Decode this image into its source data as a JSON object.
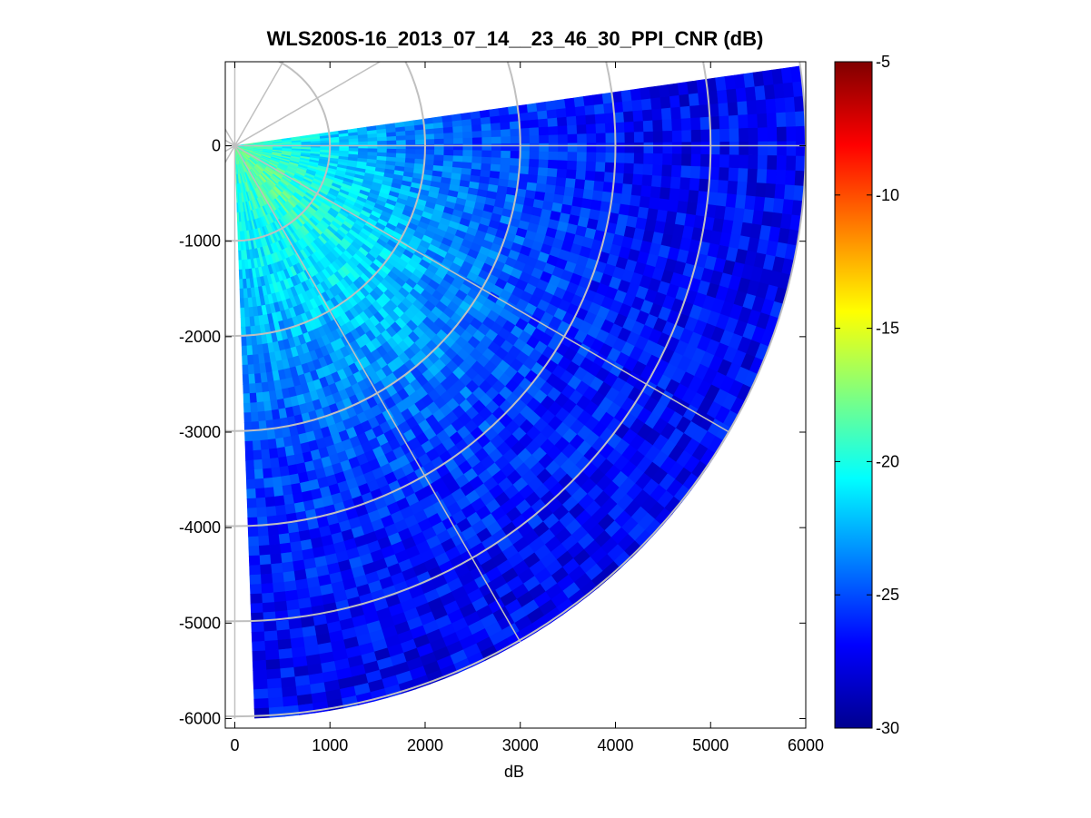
{
  "chart_data": {
    "type": "heatmap",
    "subtype": "polar-ppi-sector",
    "title": "WLS200S-16_2013_07_14__23_46_30_PPI_CNR (dB)",
    "xlabel": "dB",
    "ylabel": "",
    "xlim": [
      -100,
      6000
    ],
    "ylim": [
      -6100,
      880
    ],
    "x_ticks": [
      0,
      1000,
      2000,
      3000,
      4000,
      5000,
      6000
    ],
    "x_tick_labels": [
      "0",
      "1000",
      "2000",
      "3000",
      "4000",
      "5000",
      "6000"
    ],
    "y_ticks": [
      0,
      -1000,
      -2000,
      -3000,
      -4000,
      -5000,
      -6000
    ],
    "y_tick_labels": [
      "0",
      "-1000",
      "-2000",
      "-3000",
      "-4000",
      "-5000",
      "-6000"
    ],
    "colormap": "jet",
    "colorbar": {
      "range": [
        -30,
        -5
      ],
      "ticks": [
        -5,
        -10,
        -15,
        -20,
        -25,
        -30
      ],
      "tick_labels": [
        "-5",
        "-10",
        "-15",
        "-20",
        "-25",
        "-30"
      ]
    },
    "sector": {
      "center": [
        0,
        0
      ],
      "azimuth_min_deg": -88,
      "azimuth_max_deg": 8,
      "max_range": 6000,
      "range_gate": 100,
      "azimuth_step_deg": 1.5
    },
    "cnr_profile": {
      "range": [
        0,
        500,
        1000,
        1500,
        2000,
        2500,
        3000,
        3500,
        4000,
        4500,
        5000,
        5500,
        6000
      ],
      "cnr_db_at_azimuth_-45": [
        -18,
        -18.5,
        -19.5,
        -20.5,
        -21.5,
        -22.5,
        -23.5,
        -24.5,
        -25.5,
        -26,
        -26.5,
        -27,
        -27
      ],
      "cnr_db_at_azimuth_0": [
        -19,
        -20,
        -21.5,
        -23,
        -24,
        -25,
        -25.5,
        -26,
        -26.5,
        -27,
        -27,
        -27,
        -27
      ],
      "cnr_db_at_azimuth_-85": [
        -19,
        -20,
        -21,
        -22,
        -23,
        -24,
        -25,
        -25.5,
        -26,
        -26.5,
        -27,
        -27,
        -27
      ]
    },
    "polar_grid": {
      "rings": [
        1000,
        2000,
        3000,
        4000,
        5000,
        6000
      ],
      "spokes_deg": [
        0,
        30,
        60,
        90,
        120,
        150,
        180,
        210,
        240,
        270,
        300,
        330
      ]
    },
    "grid": false,
    "legend": "none"
  }
}
